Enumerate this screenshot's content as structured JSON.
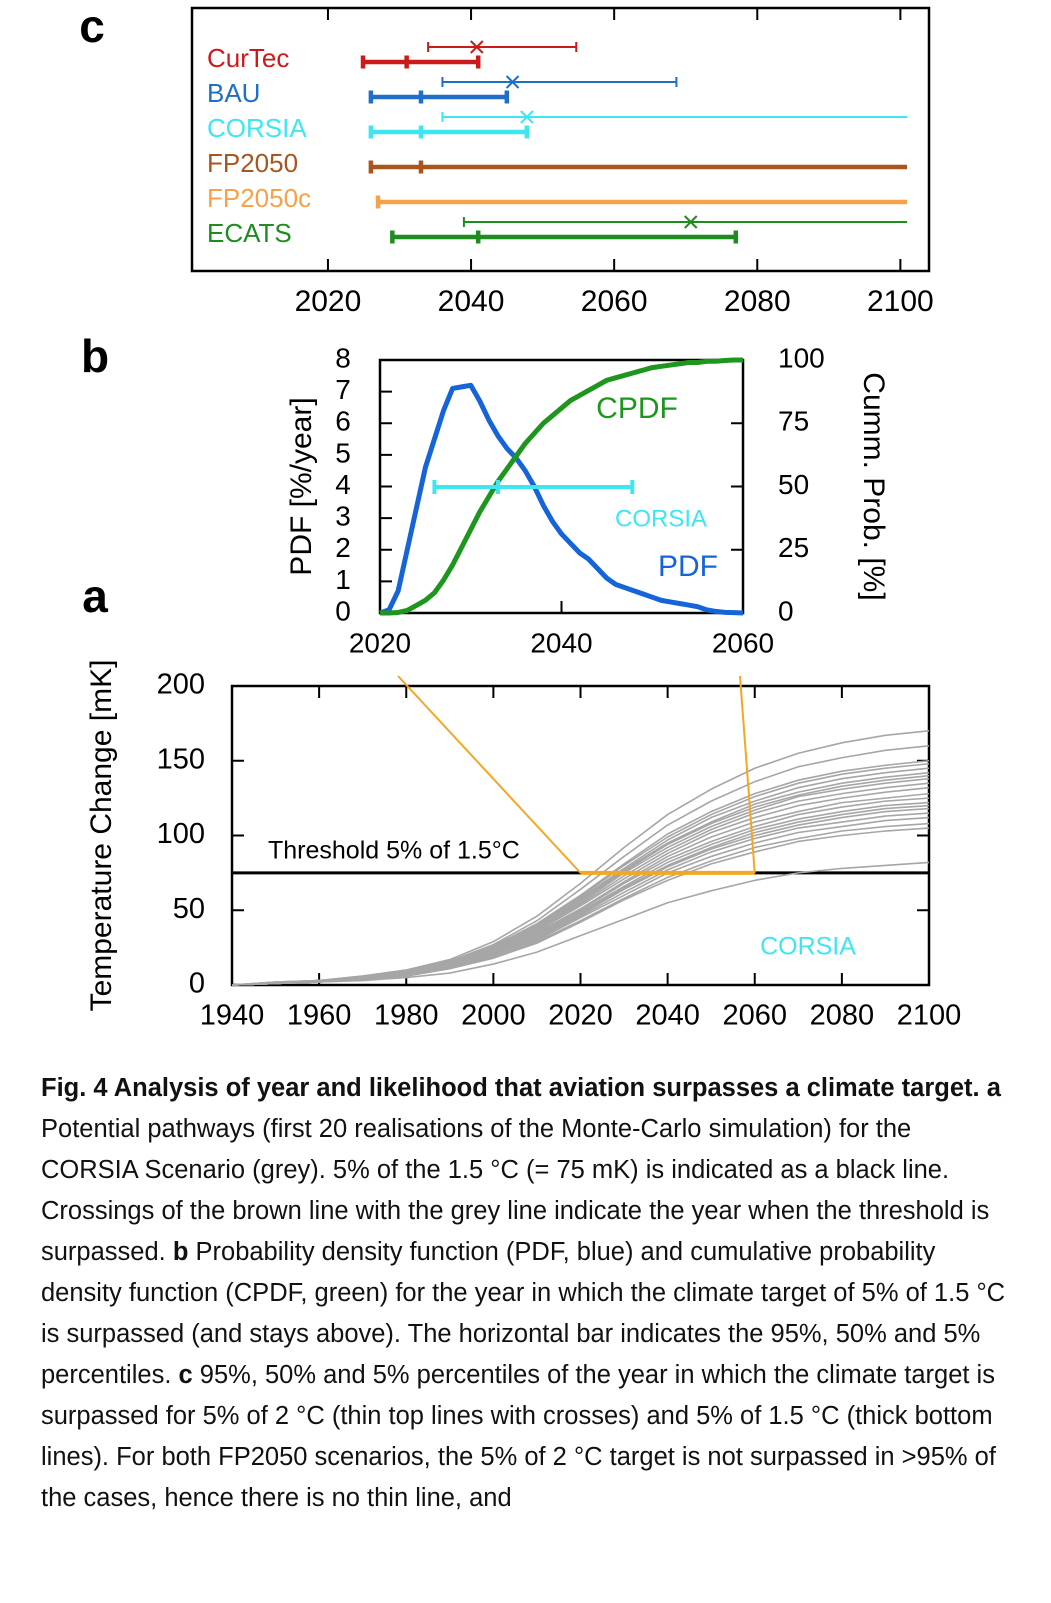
{
  "chart_data": [
    {
      "type": "range",
      "label": "c",
      "xlim": [
        2001,
        2104
      ],
      "xticks": [
        2020,
        2040,
        2060,
        2080,
        2100
      ],
      "mirror_ticks": true,
      "series": [
        {
          "name": "CurTec",
          "color": "#cc1a1a",
          "values": [
            2024.9,
            2031,
            2041
          ],
          "values_2c": [
            2034,
            2040.8,
            2054.7
          ]
        },
        {
          "name": "BAU",
          "color": "#1f6fc9",
          "values": [
            2026,
            2033,
            2045
          ],
          "values_2c": [
            2036,
            2045.8,
            2068.7
          ]
        },
        {
          "name": "CORSIA",
          "color": "#3ee6f2",
          "values": [
            2026,
            2033,
            2047.8
          ],
          "values_2c": [
            2036,
            2047.8,
            null
          ]
        },
        {
          "name": "FP2050",
          "color": "#a9561e",
          "values": [
            2026,
            2033,
            null
          ],
          "values_2c": [
            null,
            null,
            null
          ]
        },
        {
          "name": "FP2050c",
          "color": "#f7a24a",
          "values": [
            2027,
            null,
            null
          ],
          "values_2c": [
            null,
            null,
            null
          ]
        },
        {
          "name": "ECATS",
          "color": "#1e8c1e",
          "values": [
            2029,
            2041,
            2077
          ],
          "values_2c": [
            2039,
            2070.7,
            null
          ]
        }
      ]
    },
    {
      "type": "line",
      "label": "b",
      "xlim": [
        2020,
        2060
      ],
      "xticks": [
        2020,
        2040,
        2060
      ],
      "ylim": [
        0,
        8
      ],
      "yticks": [
        0,
        1,
        2,
        3,
        4,
        5,
        6,
        7,
        8
      ],
      "ylabel": "PDF [%/year]",
      "y2lim": [
        0,
        100
      ],
      "y2ticks": [
        0,
        25,
        50,
        75,
        100
      ],
      "y2label": "Cumm. Prob. [%]",
      "x": [
        2020,
        2021,
        2022,
        2023,
        2024,
        2025,
        2026,
        2027,
        2028,
        2029,
        2030,
        2031,
        2032,
        2033,
        2034,
        2035,
        2036,
        2037,
        2038,
        2039,
        2040,
        2041,
        2042,
        2043,
        2044,
        2045,
        2046,
        2047,
        2048,
        2049,
        2050,
        2051,
        2052,
        2053,
        2054,
        2055,
        2056,
        2057,
        2058,
        2059,
        2060
      ],
      "series": [
        {
          "name": "PDF",
          "color": "#1565d8",
          "values": [
            0,
            0.1,
            0.7,
            2.0,
            3.3,
            4.6,
            5.5,
            6.4,
            7.1,
            7.15,
            7.2,
            6.7,
            6.1,
            5.6,
            5.2,
            4.9,
            4.5,
            4.0,
            3.4,
            2.9,
            2.5,
            2.2,
            1.9,
            1.7,
            1.4,
            1.1,
            0.9,
            0.8,
            0.7,
            0.6,
            0.5,
            0.4,
            0.35,
            0.3,
            0.25,
            0.2,
            0.1,
            0.05,
            0.02,
            0.01,
            0
          ]
        },
        {
          "name": "CPDF",
          "color": "#1e961e",
          "axis": "y2",
          "values": [
            0,
            0,
            0.2,
            1,
            3,
            5,
            8,
            13,
            19,
            26,
            33,
            40,
            46,
            52,
            57,
            62,
            67,
            71,
            75,
            78,
            81,
            84,
            86,
            88,
            90,
            92,
            93,
            94,
            95,
            96,
            97,
            97.5,
            98,
            98.5,
            99,
            99,
            99.5,
            99.5,
            99.8,
            100,
            100
          ]
        }
      ],
      "percentiles": {
        "name": "CORSIA",
        "color": "#3ee6f2",
        "values": [
          2026,
          2033,
          2047.8
        ]
      }
    },
    {
      "type": "line",
      "label": "a",
      "xlim": [
        1940,
        2100
      ],
      "xticks": [
        1940,
        1960,
        1980,
        2000,
        2020,
        2040,
        2060,
        2080,
        2100
      ],
      "mirror_ticks": true,
      "ylim": [
        0,
        200
      ],
      "yticks": [
        0,
        50,
        100,
        150,
        200
      ],
      "ylabel": "Temperature Change [mK]",
      "threshold": {
        "value": 75,
        "label": "Threshold 5% of 1.5°C"
      },
      "highlight_color": "#f5a623",
      "annotation": {
        "text": "CORSIA",
        "color": "#3ee6f2"
      },
      "line_color": "#a6a6a6",
      "x": [
        1940,
        1950,
        1960,
        1970,
        1980,
        1990,
        2000,
        2010,
        2020,
        2030,
        2040,
        2050,
        2060,
        2070,
        2080,
        2090,
        2100
      ],
      "series": [
        {
          "values": [
            0,
            2,
            3,
            6,
            10,
            17,
            29,
            46,
            68,
            92,
            114,
            131,
            145,
            155,
            162,
            167,
            170
          ]
        },
        {
          "values": [
            0,
            2,
            3,
            6,
            10,
            16,
            27,
            43,
            64,
            86,
            107,
            123,
            136,
            146,
            152,
            157,
            160
          ]
        },
        {
          "values": [
            0,
            2,
            3,
            5,
            9,
            15,
            26,
            41,
            60,
            81,
            101,
            116,
            128,
            137,
            143,
            147,
            150
          ]
        },
        {
          "values": [
            0,
            1,
            3,
            5,
            9,
            15,
            25,
            40,
            59,
            80,
            99,
            114,
            126,
            135,
            141,
            145,
            148
          ]
        },
        {
          "values": [
            0,
            1,
            3,
            5,
            9,
            15,
            25,
            39,
            58,
            78,
            97,
            112,
            123,
            132,
            138,
            142,
            145
          ]
        },
        {
          "values": [
            0,
            1,
            3,
            5,
            9,
            14,
            24,
            38,
            57,
            77,
            95,
            109,
            121,
            129,
            135,
            139,
            142
          ]
        },
        {
          "values": [
            0,
            1,
            3,
            5,
            8,
            14,
            24,
            38,
            56,
            76,
            94,
            108,
            119,
            127,
            133,
            137,
            140
          ]
        },
        {
          "values": [
            0,
            1,
            3,
            5,
            8,
            14,
            23,
            37,
            55,
            75,
            92,
            106,
            117,
            126,
            131,
            135,
            138
          ]
        },
        {
          "values": [
            0,
            1,
            3,
            5,
            8,
            14,
            23,
            36,
            54,
            73,
            90,
            104,
            115,
            123,
            128,
            132,
            135
          ]
        },
        {
          "values": [
            0,
            1,
            3,
            5,
            8,
            13,
            22,
            36,
            53,
            71,
            88,
            102,
            112,
            120,
            125,
            129,
            132
          ]
        },
        {
          "values": [
            0,
            1,
            3,
            4,
            8,
            13,
            22,
            35,
            51,
            69,
            86,
            99,
            109,
            116,
            122,
            125,
            128
          ]
        },
        {
          "values": [
            0,
            1,
            3,
            4,
            8,
            13,
            21,
            34,
            50,
            68,
            84,
            96,
            106,
            114,
            119,
            123,
            125
          ]
        },
        {
          "values": [
            0,
            1,
            2,
            4,
            7,
            12,
            21,
            33,
            49,
            66,
            82,
            94,
            104,
            111,
            116,
            120,
            122
          ]
        },
        {
          "values": [
            0,
            1,
            2,
            4,
            7,
            12,
            20,
            32,
            48,
            65,
            80,
            92,
            102,
            109,
            114,
            118,
            120
          ]
        },
        {
          "values": [
            0,
            1,
            2,
            4,
            7,
            12,
            20,
            32,
            47,
            64,
            79,
            91,
            100,
            107,
            112,
            116,
            118
          ]
        },
        {
          "values": [
            0,
            1,
            2,
            4,
            7,
            12,
            20,
            31,
            46,
            62,
            77,
            89,
            98,
            105,
            109,
            113,
            115
          ]
        },
        {
          "values": [
            0,
            1,
            2,
            4,
            7,
            11,
            19,
            30,
            45,
            60,
            75,
            86,
            95,
            102,
            106,
            110,
            112
          ]
        },
        {
          "values": [
            0,
            1,
            2,
            4,
            6,
            11,
            18,
            29,
            43,
            58,
            72,
            83,
            92,
            98,
            103,
            106,
            108
          ]
        },
        {
          "values": [
            0,
            1,
            2,
            4,
            6,
            11,
            18,
            28,
            42,
            57,
            70,
            81,
            89,
            96,
            100,
            103,
            105
          ]
        },
        {
          "values": [
            0,
            1,
            2,
            3,
            5,
            8,
            14,
            22,
            33,
            44,
            55,
            63,
            70,
            75,
            78,
            80,
            82
          ]
        }
      ]
    }
  ],
  "caption": [
    {
      "bold": true,
      "text": "Fig. 4 Analysis of year and likelihood that aviation surpasses a climate target."
    },
    {
      "bold": true,
      "text": "a"
    },
    {
      "bold": false,
      "text": "Potential pathways (first 20 realisations of the Monte-Carlo simulation) for the CORSIA Scenario (grey). 5% of the 1.5 °C (= 75 mK) is indicated as a black line. Crossings of the brown line with the grey line indicate the year when the threshold is surpassed."
    },
    {
      "bold": true,
      "text": "b"
    },
    {
      "bold": false,
      "text": "Probability density function (PDF, blue) and cumulative probability density function (CPDF, green) for the year in which the climate target of 5% of 1.5 °C is surpassed (and stays above). The horizontal bar indicates the 95%, 50% and 5% percentiles."
    },
    {
      "bold": true,
      "text": "c"
    },
    {
      "bold": false,
      "text": "95%, 50% and 5% percentiles of the year in which the climate target is surpassed for 5% of 2 °C (thin top lines with crosses) and 5% of 1.5 °C (thick bottom lines). For both FP2050 scenarios, the 5% of 2 °C target is not surpassed in >95% of the cases, hence there is no thin line, and"
    }
  ]
}
